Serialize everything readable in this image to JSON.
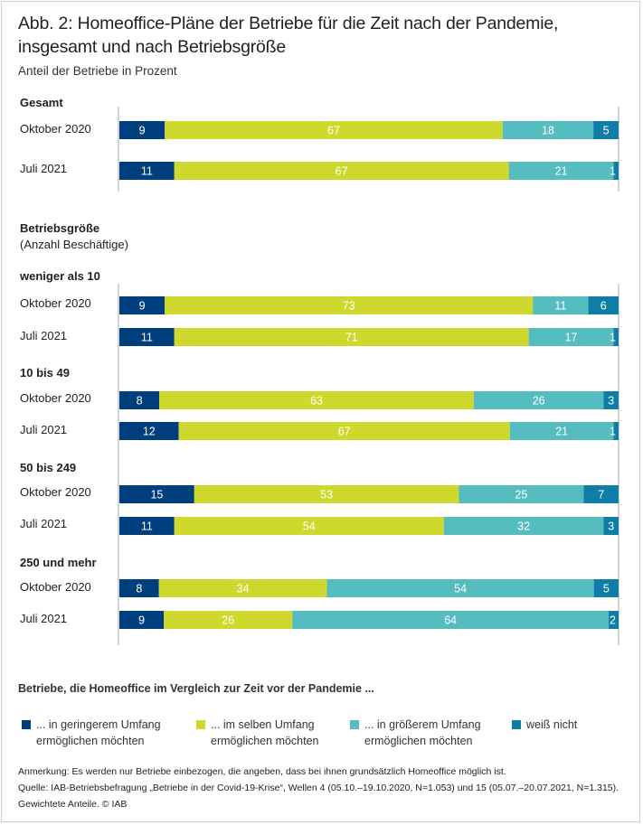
{
  "header": {
    "title": "Abb. 2: Homeoffice-Pläne der Betriebe für die Zeit nach der Pandemie, insgesamt und nach Betriebsgröße",
    "subtitle": "Anteil der Betriebe in Prozent"
  },
  "section_label": "Betriebsgröße",
  "section_sublabel": "(Anzahl Beschäftige)",
  "colors": {
    "geringer": "#003f7d",
    "selben": "#cfd82c",
    "groesser": "#55bcbf",
    "weiss_nicht": "#0f7ea6"
  },
  "chart_data": {
    "type": "bar",
    "orientation": "horizontal-stacked-100",
    "title": "Abb. 2: Homeoffice-Pläne der Betriebe für die Zeit nach der Pandemie, insgesamt und nach Betriebsgröße",
    "ylabel": "Anteil der Betriebe in Prozent",
    "xlim": [
      0,
      100
    ],
    "series_names": [
      "... in geringerem Umfang ermöglichen möchten",
      "... im selben Umfang ermöglichen möchten",
      "... in größerem Umfang ermöglichen möchten",
      "weiß nicht"
    ],
    "groups": [
      {
        "label": "Gesamt",
        "rows": [
          {
            "label": "Oktober 2020",
            "values": [
              9,
              67,
              18,
              5
            ]
          },
          {
            "label": "Juli 2021",
            "values": [
              11,
              67,
              21,
              1
            ]
          }
        ]
      },
      {
        "label": "weniger als 10",
        "rows": [
          {
            "label": "Oktober 2020",
            "values": [
              9,
              73,
              11,
              6
            ]
          },
          {
            "label": "Juli 2021",
            "values": [
              11,
              71,
              17,
              1
            ]
          }
        ]
      },
      {
        "label": "10 bis 49",
        "rows": [
          {
            "label": "Oktober 2020",
            "values": [
              8,
              63,
              26,
              3
            ]
          },
          {
            "label": "Juli 2021",
            "values": [
              12,
              67,
              21,
              1
            ]
          }
        ]
      },
      {
        "label": "50 bis 249",
        "rows": [
          {
            "label": "Oktober 2020",
            "values": [
              15,
              53,
              25,
              7
            ]
          },
          {
            "label": "Juli 2021",
            "values": [
              11,
              54,
              32,
              3
            ]
          }
        ]
      },
      {
        "label": "250 und mehr",
        "rows": [
          {
            "label": "Oktober 2020",
            "values": [
              8,
              34,
              54,
              5
            ]
          },
          {
            "label": "Juli 2021",
            "values": [
              9,
              26,
              64,
              2
            ]
          }
        ]
      }
    ]
  },
  "legend": {
    "title": "Betriebe, die Homeoffice im Vergleich zur Zeit vor der Pandemie ...",
    "items": [
      {
        "line1": "... in geringerem Umfang",
        "line2": "ermöglichen möchten"
      },
      {
        "line1": "... im selben Umfang",
        "line2": "ermöglichen möchten"
      },
      {
        "line1": "... in größerem Umfang",
        "line2": "ermöglichen möchten"
      },
      {
        "line1": "weiß nicht",
        "line2": ""
      }
    ]
  },
  "notes": {
    "anmerkung": "Anmerkung: Es werden nur Betriebe einbezogen, die angeben, dass bei ihnen grundsätzlich Homeoffice möglich ist.",
    "quelle": "Quelle: IAB-Betriebsbefragung „Betriebe in der Covid-19-Krise“, Wellen 4 (05.10.–19.10.2020, N=1.053) und 15 (05.07.–20.07.2021, N=1.315).",
    "gewichtet": "Gewichtete Anteile. © IAB"
  }
}
